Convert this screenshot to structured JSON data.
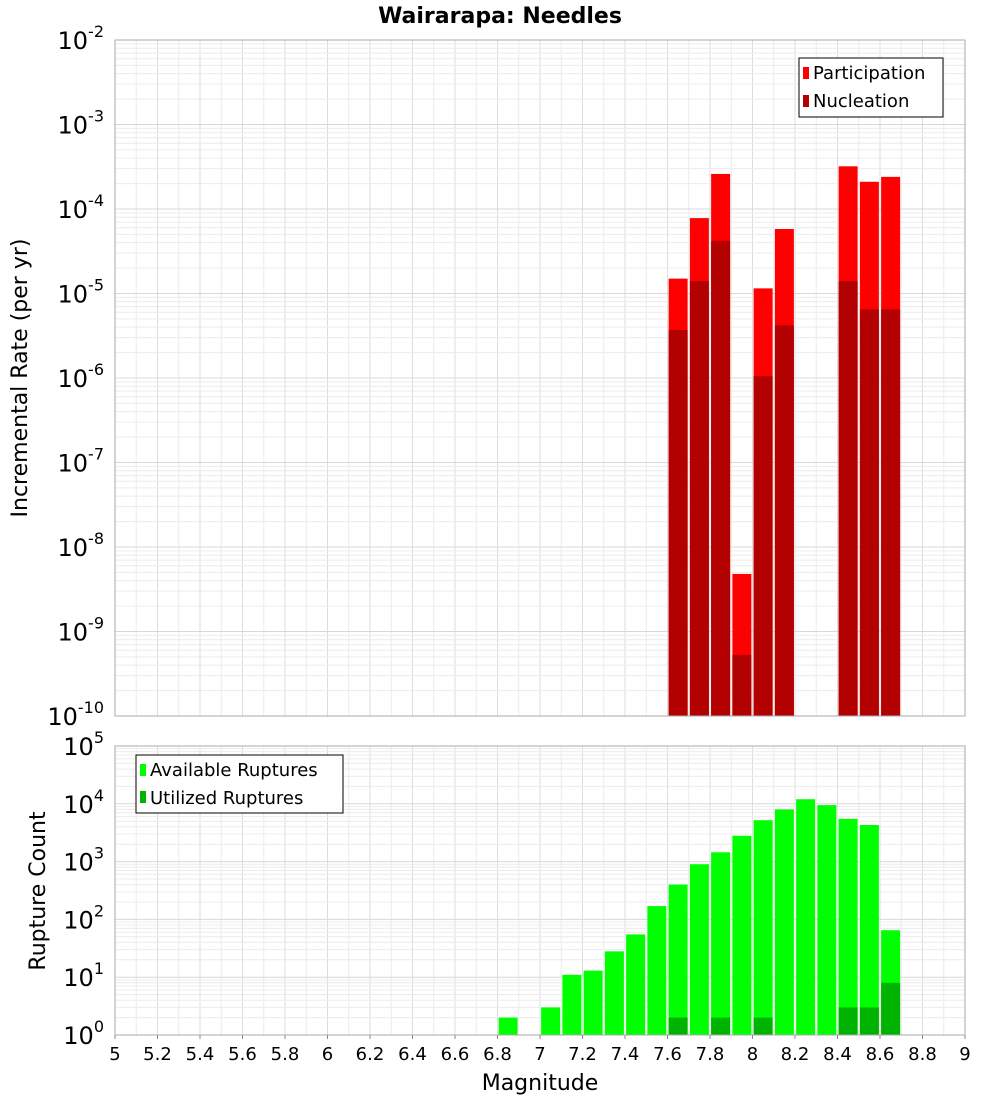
{
  "title": "Wairarapa: Needles",
  "xlabel": "Magnitude",
  "chart_data": [
    {
      "type": "bar",
      "ylabel": "Incremental Rate (per yr)",
      "yscale": "log",
      "ylim_exp": [
        -10,
        -2
      ],
      "xlim": [
        5,
        9
      ],
      "grid": true,
      "legend_position": "top-right",
      "series": [
        {
          "name": "Participation",
          "color": "#ff0000",
          "x": [
            7.65,
            7.75,
            7.85,
            7.95,
            8.05,
            8.15,
            8.45,
            8.55,
            8.65
          ],
          "values": [
            1.5e-05,
            7.8e-05,
            0.00026,
            4.8e-09,
            1.15e-05,
            5.8e-05,
            0.00032,
            0.00021,
            0.00024
          ]
        },
        {
          "name": "Nucleation",
          "color": "#b30000",
          "x": [
            7.65,
            7.75,
            7.85,
            7.95,
            8.05,
            8.15,
            8.45,
            8.55,
            8.65
          ],
          "values": [
            3.7e-06,
            1.4e-05,
            4.2e-05,
            5.3e-10,
            1.05e-06,
            4.2e-06,
            1.4e-05,
            6.5e-06,
            6.5e-06
          ]
        }
      ],
      "x_ticks": [
        "5",
        "5.2",
        "5.4",
        "5.6",
        "5.8",
        "6",
        "6.2",
        "6.4",
        "6.6",
        "6.8",
        "7",
        "7.2",
        "7.4",
        "7.6",
        "7.8",
        "8",
        "8.2",
        "8.4",
        "8.6",
        "8.8",
        "9"
      ],
      "y_tick_base": "10",
      "y_tick_exponents": [
        "-10",
        "-9",
        "-8",
        "-7",
        "-6",
        "-5",
        "-4",
        "-3",
        "-2"
      ]
    },
    {
      "type": "bar",
      "ylabel": "Rupture Count",
      "yscale": "log",
      "ylim_exp": [
        0,
        5
      ],
      "xlim": [
        5,
        9
      ],
      "grid": true,
      "legend_position": "top-left",
      "series": [
        {
          "name": "Available Ruptures",
          "color": "#00ff00",
          "x": [
            6.85,
            7.05,
            7.15,
            7.25,
            7.35,
            7.45,
            7.55,
            7.65,
            7.75,
            7.85,
            7.95,
            8.05,
            8.15,
            8.25,
            8.35,
            8.45,
            8.55,
            8.65
          ],
          "values": [
            2,
            3,
            11,
            13,
            28,
            55,
            170,
            400,
            900,
            1450,
            2800,
            5200,
            8000,
            12000,
            9500,
            5500,
            4300,
            65
          ]
        },
        {
          "name": "Utilized Ruptures",
          "color": "#00b300",
          "x": [
            7.65,
            7.75,
            7.85,
            7.95,
            8.05,
            8.15,
            8.45,
            8.55,
            8.65
          ],
          "values": [
            2,
            1,
            2,
            1,
            2,
            1,
            3,
            3,
            8
          ]
        }
      ],
      "x_ticks": [
        "5",
        "5.2",
        "5.4",
        "5.6",
        "5.8",
        "6",
        "6.2",
        "6.4",
        "6.6",
        "6.8",
        "7",
        "7.2",
        "7.4",
        "7.6",
        "7.8",
        "8",
        "8.2",
        "8.4",
        "8.6",
        "8.8",
        "9"
      ],
      "y_tick_base": "10",
      "y_tick_exponents": [
        "0",
        "1",
        "2",
        "3",
        "4",
        "5"
      ]
    }
  ]
}
